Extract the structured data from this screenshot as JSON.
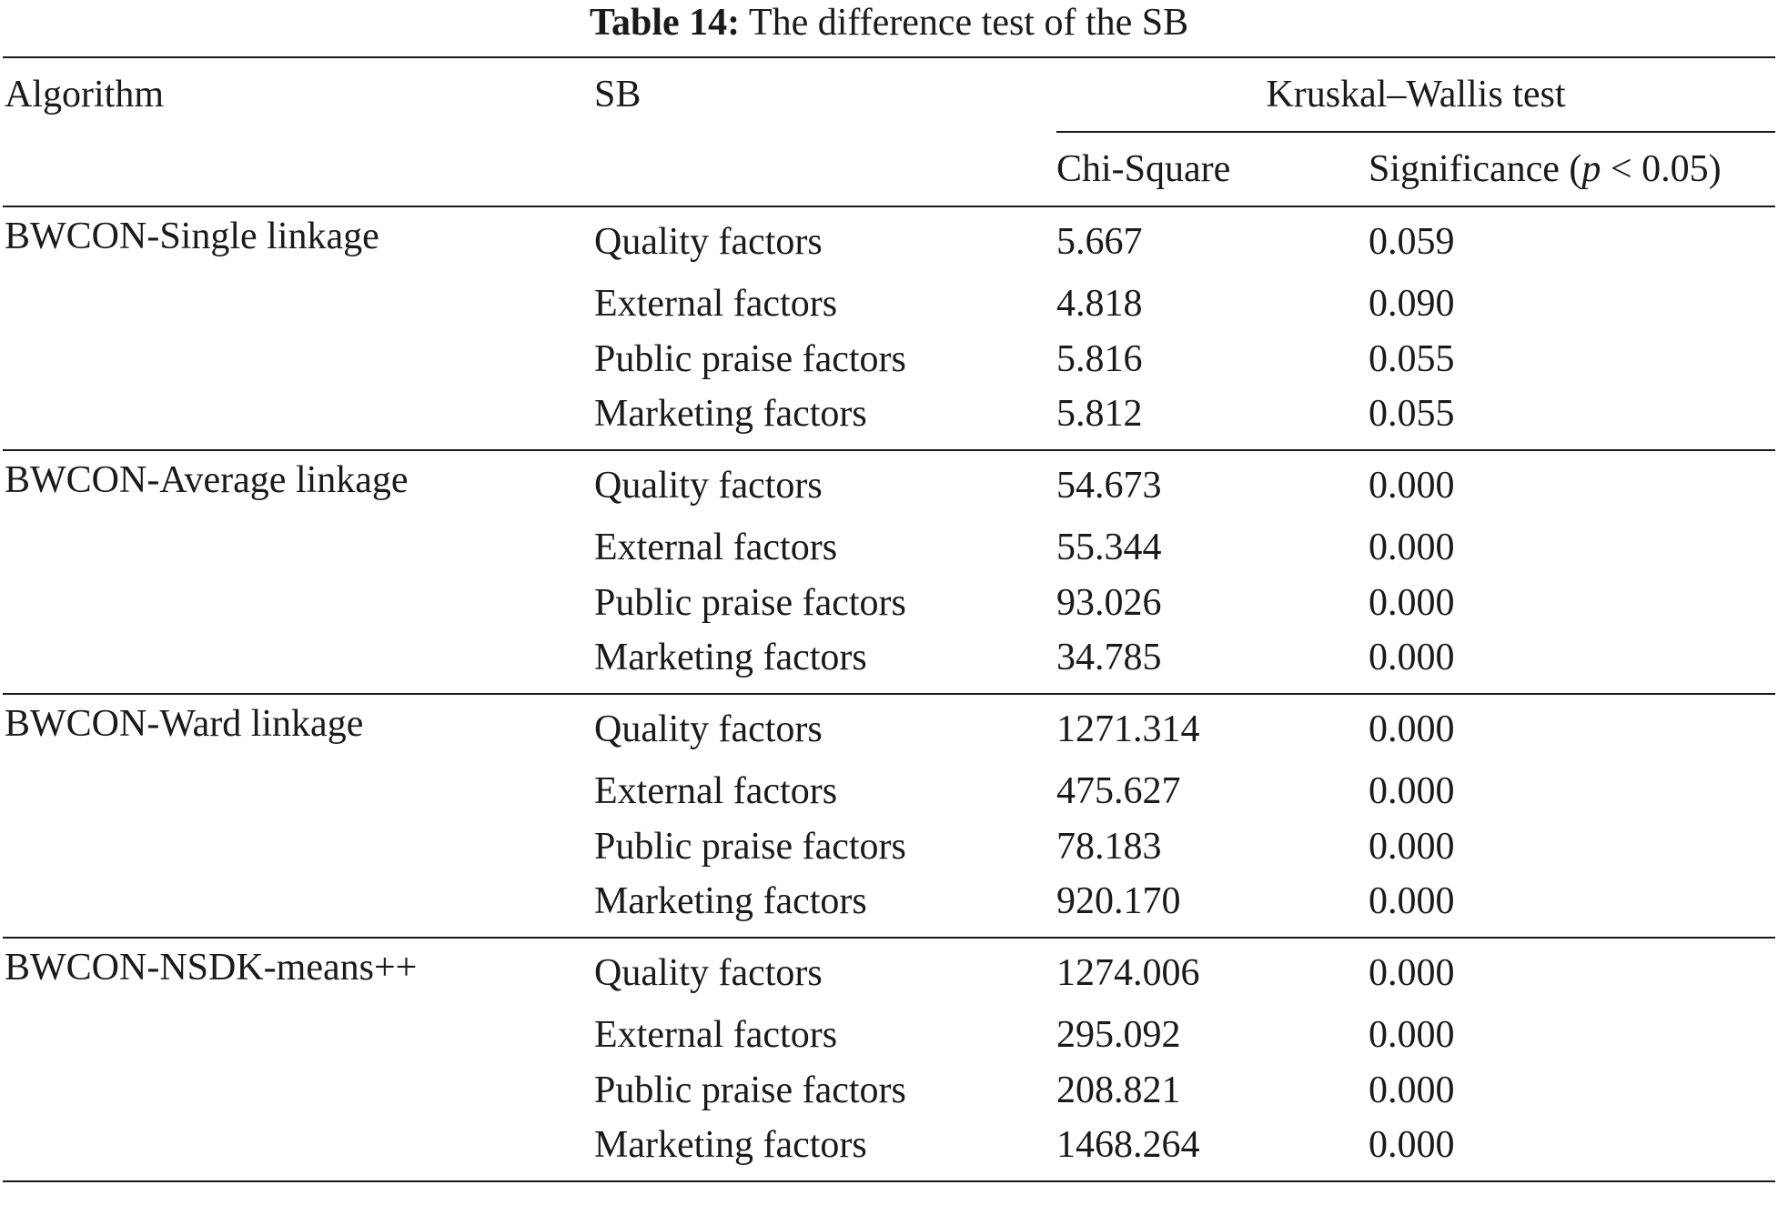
{
  "caption": {
    "label": "Table 14:",
    "text": "The difference test of the SB"
  },
  "headers": {
    "algorithm": "Algorithm",
    "sb": "SB",
    "group": "Kruskal–Wallis test",
    "chi_square": "Chi-Square",
    "significance_prefix": "Significance (",
    "significance_p": "p",
    "significance_suffix": " < 0.05)"
  },
  "groups": [
    {
      "algorithm": "BWCON-Single linkage",
      "rows": [
        {
          "sb": "Quality factors",
          "chi": "5.667",
          "sig": "0.059"
        },
        {
          "sb": "External factors",
          "chi": "4.818",
          "sig": "0.090"
        },
        {
          "sb": "Public praise factors",
          "chi": "5.816",
          "sig": "0.055"
        },
        {
          "sb": "Marketing factors",
          "chi": "5.812",
          "sig": "0.055"
        }
      ]
    },
    {
      "algorithm": "BWCON-Average linkage",
      "rows": [
        {
          "sb": "Quality factors",
          "chi": "54.673",
          "sig": "0.000"
        },
        {
          "sb": "External factors",
          "chi": "55.344",
          "sig": "0.000"
        },
        {
          "sb": "Public praise factors",
          "chi": "93.026",
          "sig": "0.000"
        },
        {
          "sb": "Marketing factors",
          "chi": "34.785",
          "sig": "0.000"
        }
      ]
    },
    {
      "algorithm": "BWCON-Ward linkage",
      "rows": [
        {
          "sb": "Quality factors",
          "chi": "1271.314",
          "sig": "0.000"
        },
        {
          "sb": "External factors",
          "chi": "475.627",
          "sig": "0.000"
        },
        {
          "sb": "Public praise factors",
          "chi": "78.183",
          "sig": "0.000"
        },
        {
          "sb": "Marketing factors",
          "chi": "920.170",
          "sig": "0.000"
        }
      ]
    },
    {
      "algorithm": "BWCON-NSDK-means++",
      "rows": [
        {
          "sb": "Quality factors",
          "chi": "1274.006",
          "sig": "0.000"
        },
        {
          "sb": "External factors",
          "chi": "295.092",
          "sig": "0.000"
        },
        {
          "sb": "Public praise factors",
          "chi": "208.821",
          "sig": "0.000"
        },
        {
          "sb": "Marketing factors",
          "chi": "1468.264",
          "sig": "0.000"
        }
      ]
    }
  ]
}
